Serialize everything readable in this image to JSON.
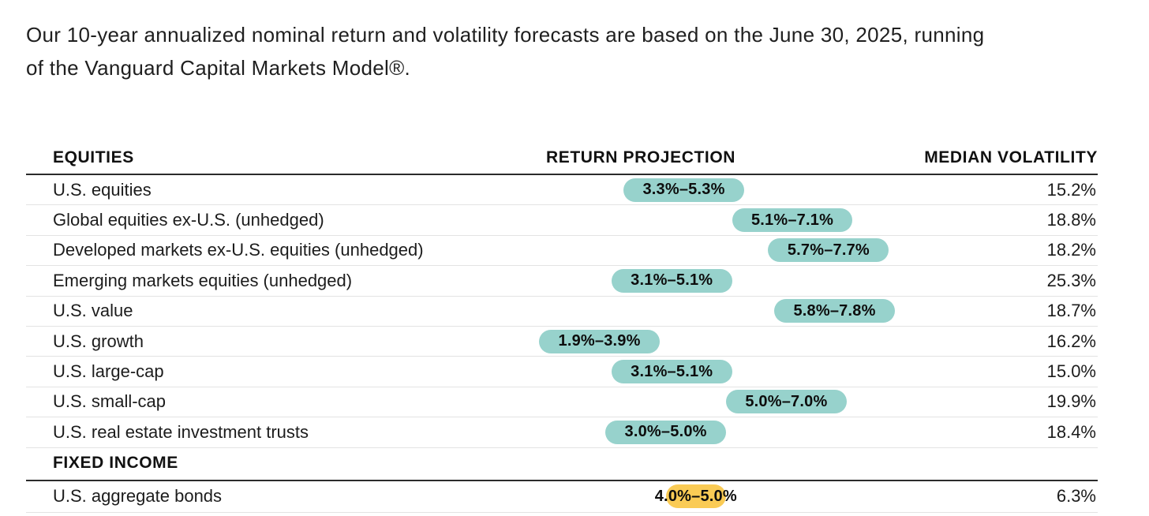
{
  "intro": {
    "line1": "Our 10-year annualized nominal return and volatility forecasts are based on the June 30, 2025, running",
    "line2": "of the Vanguard Capital Markets Model®."
  },
  "colors": {
    "teal_range_pill": "#97D2CC",
    "yellow_range_pill": "#FACB55",
    "text": "#1c1c1c",
    "rule_dark": "#2b2b2b",
    "rule_light": "#e3e3e3"
  },
  "table": {
    "columns": [
      "EQUITIES",
      "RETURN PROJECTION",
      "MEDIAN VOLATILITY"
    ],
    "sections": [
      {
        "label": "EQUITIES",
        "rows": [
          {
            "label": "U.S. equities",
            "range_label": "3.3%–5.3%",
            "low": 3.3,
            "high": 5.3,
            "volatility": "15.2%",
            "highlight": "teal"
          },
          {
            "label": "Global equities ex-U.S. (unhedged)",
            "range_label": "5.1%–7.1%",
            "low": 5.1,
            "high": 7.1,
            "volatility": "18.8%",
            "highlight": "teal"
          },
          {
            "label": "Developed markets ex-U.S. equities (unhedged)",
            "range_label": "5.7%–7.7%",
            "low": 5.7,
            "high": 7.7,
            "volatility": "18.2%",
            "highlight": "teal"
          },
          {
            "label": "Emerging markets equities (unhedged)",
            "range_label": "3.1%–5.1%",
            "low": 3.1,
            "high": 5.1,
            "volatility": "25.3%",
            "highlight": "teal"
          },
          {
            "label": "U.S. value",
            "range_label": "5.8%–7.8%",
            "low": 5.8,
            "high": 7.8,
            "volatility": "18.7%",
            "highlight": "teal"
          },
          {
            "label": "U.S. growth",
            "range_label": "1.9%–3.9%",
            "low": 1.9,
            "high": 3.9,
            "volatility": "16.2%",
            "highlight": "teal"
          },
          {
            "label": "U.S. large-cap",
            "range_label": "3.1%–5.1%",
            "low": 3.1,
            "high": 5.1,
            "volatility": "15.0%",
            "highlight": "teal"
          },
          {
            "label": "U.S. small-cap",
            "range_label": "5.0%–7.0%",
            "low": 5.0,
            "high": 7.0,
            "volatility": "19.9%",
            "highlight": "teal"
          },
          {
            "label": "U.S. real estate investment trusts",
            "range_label": "3.0%–5.0%",
            "low": 3.0,
            "high": 5.0,
            "volatility": "18.4%",
            "highlight": "teal"
          }
        ]
      },
      {
        "label": "FIXED INCOME",
        "rows": [
          {
            "label": "U.S. aggregate bonds",
            "range_label": "4.0%–5.0%",
            "low": 4.0,
            "high": 5.0,
            "volatility": "6.3%",
            "highlight": "yellow"
          }
        ]
      }
    ]
  },
  "chart_data": {
    "type": "table",
    "title": "Our 10-year annualized nominal return and volatility forecasts are based on the June 30, 2025, running of the Vanguard Capital Markets Model®.",
    "columns": [
      "EQUITIES",
      "RETURN PROJECTION",
      "MEDIAN VOLATILITY"
    ],
    "range_axis_pct": [
      1.9,
      7.8
    ],
    "rows": [
      {
        "section": "EQUITIES",
        "category": "U.S. equities",
        "return_low_pct": 3.3,
        "return_high_pct": 5.3,
        "median_volatility_pct": 15.2
      },
      {
        "section": "EQUITIES",
        "category": "Global equities ex-U.S. (unhedged)",
        "return_low_pct": 5.1,
        "return_high_pct": 7.1,
        "median_volatility_pct": 18.8
      },
      {
        "section": "EQUITIES",
        "category": "Developed markets ex-U.S. equities (unhedged)",
        "return_low_pct": 5.7,
        "return_high_pct": 7.7,
        "median_volatility_pct": 18.2
      },
      {
        "section": "EQUITIES",
        "category": "Emerging markets equities (unhedged)",
        "return_low_pct": 3.1,
        "return_high_pct": 5.1,
        "median_volatility_pct": 25.3
      },
      {
        "section": "EQUITIES",
        "category": "U.S. value",
        "return_low_pct": 5.8,
        "return_high_pct": 7.8,
        "median_volatility_pct": 18.7
      },
      {
        "section": "EQUITIES",
        "category": "U.S. growth",
        "return_low_pct": 1.9,
        "return_high_pct": 3.9,
        "median_volatility_pct": 16.2
      },
      {
        "section": "EQUITIES",
        "category": "U.S. large-cap",
        "return_low_pct": 3.1,
        "return_high_pct": 5.1,
        "median_volatility_pct": 15.0
      },
      {
        "section": "EQUITIES",
        "category": "U.S. small-cap",
        "return_low_pct": 5.0,
        "return_high_pct": 7.0,
        "median_volatility_pct": 19.9
      },
      {
        "section": "EQUITIES",
        "category": "U.S. real estate investment trusts",
        "return_low_pct": 3.0,
        "return_high_pct": 5.0,
        "median_volatility_pct": 18.4
      },
      {
        "section": "FIXED INCOME",
        "category": "U.S. aggregate bonds",
        "return_low_pct": 4.0,
        "return_high_pct": 5.0,
        "median_volatility_pct": 6.3
      }
    ]
  }
}
